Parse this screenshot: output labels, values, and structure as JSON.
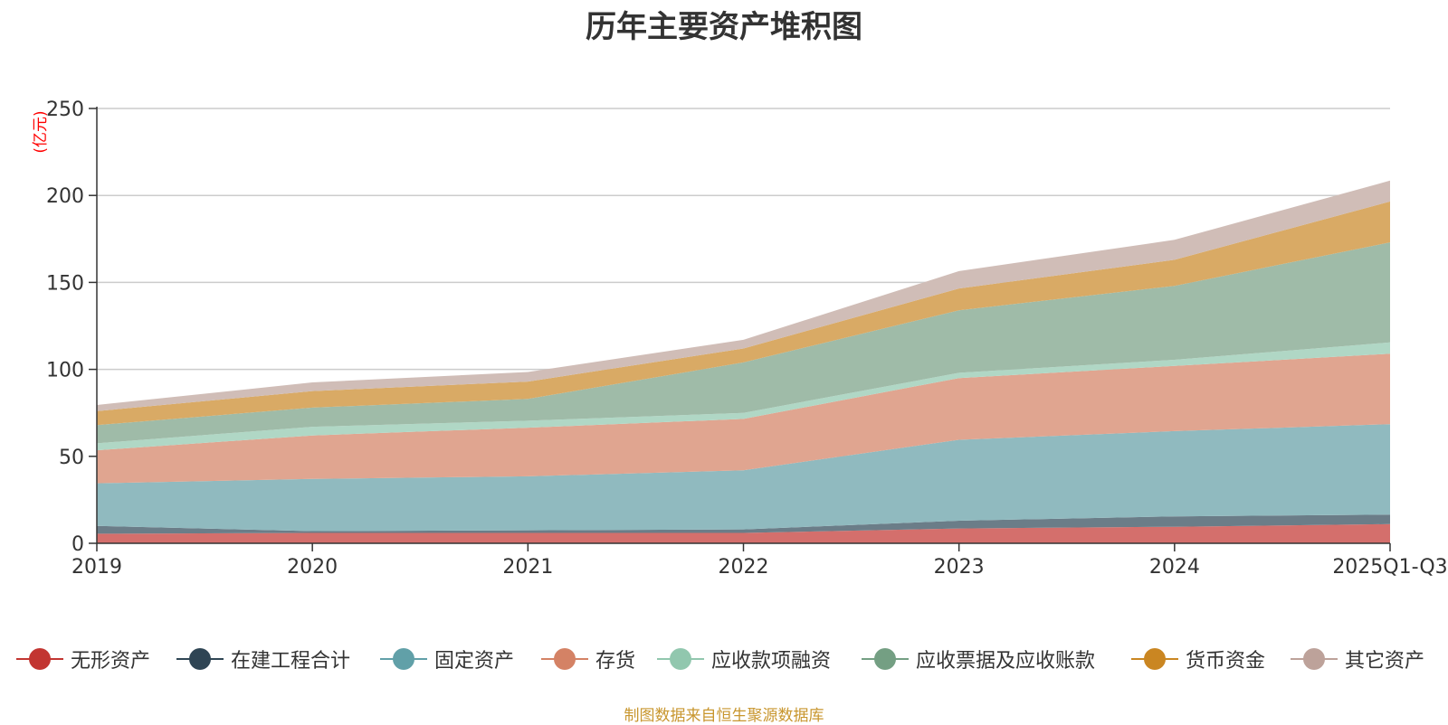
{
  "chart_data": {
    "type": "area",
    "stacked": true,
    "title": "历年主要资产堆积图",
    "unit_label": "(亿元)",
    "categories": [
      "2019",
      "2020",
      "2021",
      "2022",
      "2023",
      "2024",
      "2025Q1-Q3"
    ],
    "y_ticks": [
      "0",
      "50",
      "100",
      "150",
      "200",
      "250"
    ],
    "ylim": [
      0,
      250
    ],
    "grid": true,
    "legend_position": "bottom",
    "series": [
      {
        "name": "无形资产",
        "color": "#c23531",
        "area_color": "#d46f6c",
        "values": [
          5.5,
          6,
          6,
          6,
          8.5,
          9.5,
          11
        ]
      },
      {
        "name": "在建工程合计",
        "color": "#2f4554",
        "area_color": "#6b7d88",
        "values": [
          4.5,
          1,
          1.5,
          2,
          4.5,
          6,
          5.5
        ]
      },
      {
        "name": "固定资产",
        "color": "#61a0a8",
        "area_color": "#90babf",
        "values": [
          24.5,
          30,
          31,
          34,
          46.5,
          49,
          52
        ]
      },
      {
        "name": "存货",
        "color": "#d48265",
        "area_color": "#e0a590",
        "values": [
          19,
          25,
          28,
          29.5,
          35.5,
          37.5,
          40.5
        ]
      },
      {
        "name": "应收款项融资",
        "color": "#91c7ae",
        "area_color": "#b0d7c5",
        "values": [
          4,
          5,
          4,
          3.5,
          3,
          3.5,
          6.5
        ]
      },
      {
        "name": "应收票据及应收账款",
        "color": "#749f83",
        "area_color": "#9fbba8",
        "values": [
          10.5,
          11,
          12.5,
          29,
          36,
          42.5,
          57.5
        ]
      },
      {
        "name": "货币资金",
        "color": "#ca8622",
        "area_color": "#d9aa65",
        "values": [
          8,
          9.5,
          10,
          8,
          12.5,
          15,
          23.5
        ]
      },
      {
        "name": "其它资产",
        "color": "#bda29a",
        "area_color": "#d0bdb7",
        "values": [
          3.5,
          5,
          5.5,
          5,
          10,
          11.5,
          12
        ]
      }
    ],
    "source_note": "制图数据来自恒生聚源数据库"
  }
}
